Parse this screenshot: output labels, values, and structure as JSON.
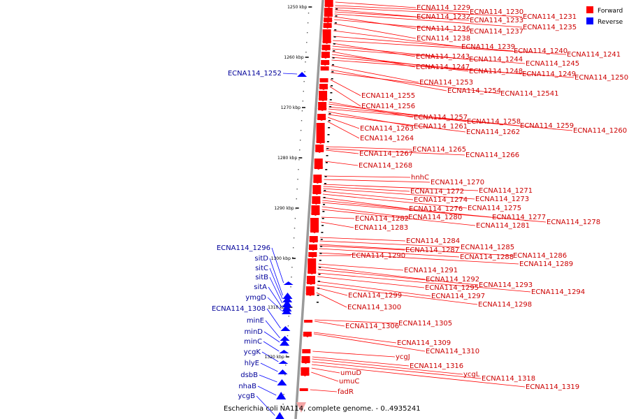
{
  "caption": "Escherichia coli NA114, complete genome. - 0..4935241",
  "legend": [
    {
      "label": "Forward",
      "color": "#ff0000"
    },
    {
      "label": "Reverse",
      "color": "#0000ff"
    }
  ],
  "ticks": [
    "1250 kbp",
    "1260 kbp",
    "1270 kbp",
    "1280 kbp",
    "1290 kbp",
    "1300 kbp",
    "1310 kbp",
    "1320 kbp"
  ],
  "forward_genes": [
    "ECNA114_1229",
    "ECNA114_1230",
    "ECNA114_1231",
    "ECNA114_1232",
    "ECNA114_1233",
    "ECNA114_1235",
    "ECNA114_1236",
    "ECNA114_1237",
    "ECNA114_1238",
    "ECNA114_1239",
    "ECNA114_1240",
    "ECNA114_1241",
    "ECNA114_1243",
    "ECNA114_1244",
    "ECNA114_1245",
    "ECNA114_1247",
    "ECNA114_1248",
    "ECNA114_1249",
    "ECNA114_1250",
    "ECNA114_1253",
    "ECNA114_1254",
    "ECNA114_12541",
    "ECNA114_1255",
    "ECNA114_1256",
    "ECNA114_1257",
    "ECNA114_1258",
    "ECNA114_1259",
    "ECNA114_1260",
    "ECNA114_1261",
    "ECNA114_1262",
    "ECNA114_1263",
    "ECNA114_1264",
    "ECNA114_1265",
    "ECNA114_1266",
    "ECNA114_1267",
    "ECNA114_1268",
    "hnhC",
    "ECNA114_1270",
    "ECNA114_1271",
    "ECNA114_1272",
    "ECNA114_1273",
    "ECNA114_1274",
    "ECNA114_1275",
    "ECNA114_1276",
    "ECNA114_1277",
    "ECNA114_1278",
    "ECNA114_1280",
    "ECNA114_1281",
    "ECNA114_1282",
    "ECNA114_1283",
    "ECNA114_1284",
    "ECNA114_1285",
    "ECNA114_1286",
    "ECNA114_1287",
    "ECNA114_1288",
    "ECNA114_1289",
    "ECNA114_1290",
    "ECNA114_1291",
    "ECNA114_1292",
    "ECNA114_1293",
    "ECNA114_1294",
    "ECNA114_1295",
    "ECNA114_1297",
    "ECNA114_1298",
    "ECNA114_1299",
    "ECNA114_1300",
    "ECNA114_1305",
    "ECNA114_1306",
    "ECNA114_1309",
    "ECNA114_1310",
    "ycgJ",
    "ECNA114_1316",
    "ycgL",
    "ECNA114_1318",
    "ECNA114_1319",
    "umuD",
    "umuC",
    "fadR"
  ],
  "reverse_genes": [
    "ECNA114_1252",
    "ECNA114_1296",
    "sitD",
    "sitC",
    "sitB",
    "sitA",
    "ymgD",
    "ECNA114_1308",
    "minE",
    "minD",
    "minC",
    "ycgK",
    "hlyE",
    "dsbB",
    "nhaB",
    "ycgB"
  ]
}
